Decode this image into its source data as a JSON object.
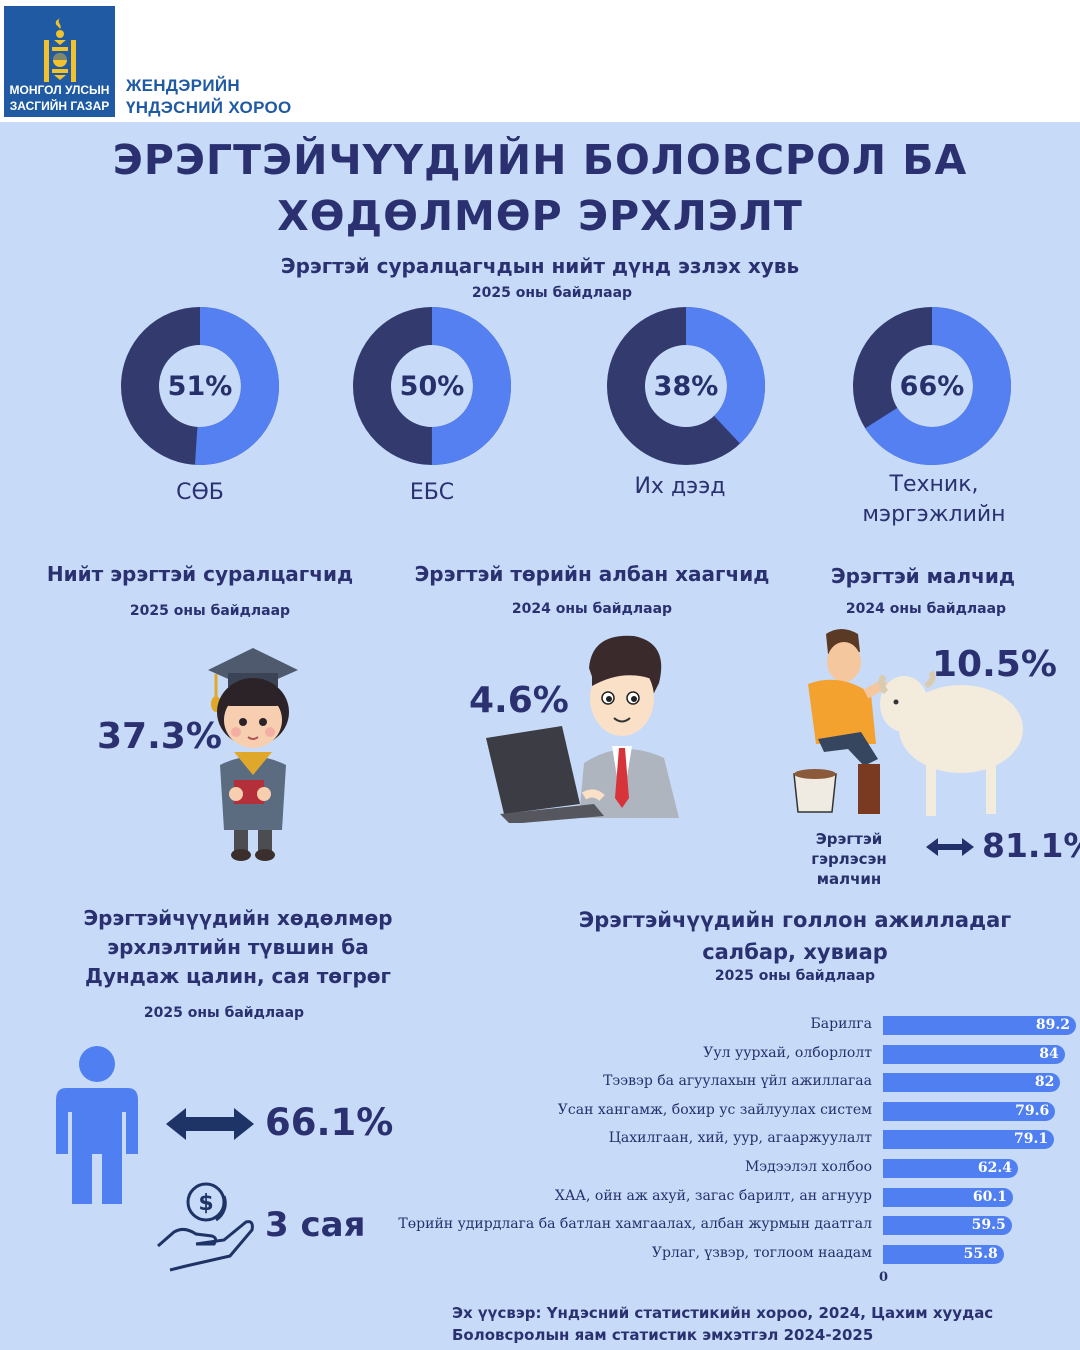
{
  "header": {
    "logo_line1": "МОНГОЛ УЛСЫН",
    "logo_line2": "ЗАСГИЙН ГАЗАР",
    "org_line1": "ЖЕНДЭРИЙН",
    "org_line2": "ҮНДЭСНИЙ ХОРОО"
  },
  "title": {
    "line1": "ЭРЭГТЭЙЧҮҮДИЙН БОЛОВСРОЛ БА",
    "line2": "ХӨДӨЛМӨР ЭРХЛЭЛТ"
  },
  "students_share": {
    "title": "Эрэгтэй суралцагчдын нийт дүнд эзлэх хувь",
    "note": "2025 оны байдлаар",
    "items": [
      {
        "label": "СӨБ",
        "value": 51,
        "display": "51%"
      },
      {
        "label": "ЕБС",
        "value": 50,
        "display": "50%"
      },
      {
        "label": "Их дээд",
        "value": 38,
        "display": "38%"
      },
      {
        "label_line1": "Техник,",
        "label_line2": "мэргэжлийн",
        "value": 66,
        "display": "66%"
      }
    ],
    "colors": {
      "dark": "#333a6e",
      "accent": "#5580f2"
    }
  },
  "stats": {
    "students": {
      "title": "Нийт эрэгтэй суралцагчид",
      "note": "2025 оны байдлаар",
      "value": "37.3%"
    },
    "civil": {
      "title": "Эрэгтэй төрийн албан хаагчид",
      "note": "2024 оны байдлаар",
      "value": "4.6%"
    },
    "herders": {
      "title": "Эрэгтэй малчид",
      "note": "2024 оны байдлаар",
      "value": "10.5%",
      "married_line1": "Эрэгтэй гэрлэсэн",
      "married_line2": "малчин",
      "married_value": "81.1%"
    }
  },
  "employment": {
    "title_line1": "Эрэгтэйчүүдийн хөдөлмөр",
    "title_line2": "эрхлэлтийн түвшин ба",
    "title_line3": "Дундаж цалин, сая төгрөг",
    "note": "2025 оны байдлаар",
    "rate": "66.1%",
    "salary": "3 сая"
  },
  "sectors": {
    "title_line1": "Эрэгтэйчүүдийн голлон ажилладаг",
    "title_line2": "салбар, хувиар",
    "note": "2025 оны байдлаар"
  },
  "chart_data": {
    "type": "bar",
    "orientation": "horizontal",
    "title": "Эрэгтэйчүүдийн голлон ажилладаг салбар, хувиар",
    "categories": [
      "Барилга",
      "Уул уурхай, олборлолт",
      "Тээвэр ба агуулахын үйл ажиллагаа",
      "Усан хангамж, бохир ус зайлуулах систем",
      "Цахилгаан, хий, уур, агааржуулалт",
      "Мэдээлэл холбоо",
      "ХАА, ойн аж ахуй, загас барилт, ан агнуур",
      "Төрийн удирдлага ба батлан хамгаалах, албан журмын даатгал",
      "Урлаг, үзвэр, тоглоом наадам"
    ],
    "values": [
      89.2,
      84,
      82,
      79.6,
      79.1,
      62.4,
      60.1,
      59.5,
      55.8
    ],
    "value_labels": [
      "89.2",
      "84",
      "82",
      "79.6",
      "79.1",
      "62.4",
      "60.1",
      "59.5",
      "55.8"
    ],
    "axis_min_label": "0",
    "xlim": [
      0,
      89.2
    ],
    "bar_color": "#4f7ff0"
  },
  "source": {
    "line1": "Эх үүсвэр: Үндэсний статистикийн хороо, 2024, Цахим хуудас",
    "line2": "Боловсролын яам статистик эмхэтгэл 2024-2025"
  }
}
